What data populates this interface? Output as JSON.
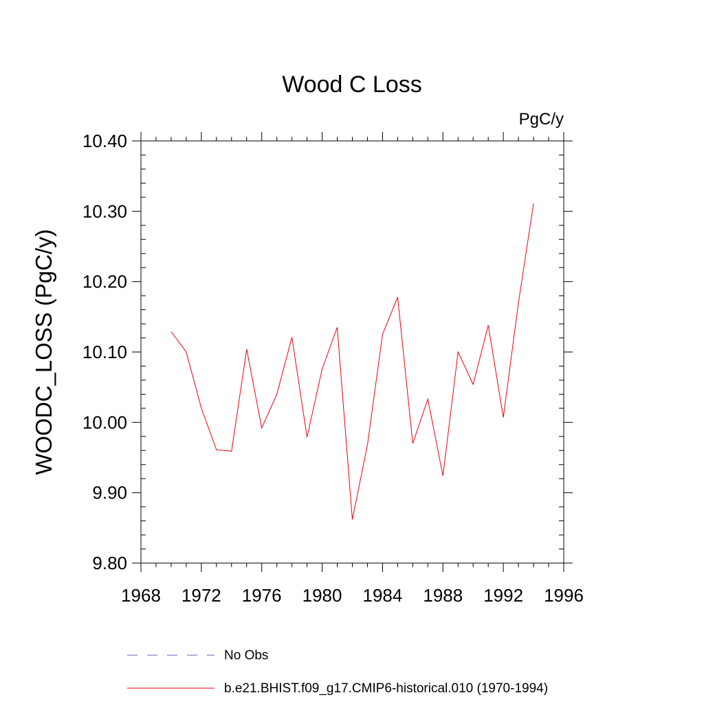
{
  "chart_data": {
    "type": "line",
    "title": "Wood C Loss",
    "units_label": "PgC/y",
    "ylabel": "WOODC_LOSS  (PgC/y)",
    "xlabel": "",
    "xlim": [
      1968,
      1996
    ],
    "ylim": [
      9.8,
      10.4
    ],
    "x_ticks": [
      "1968",
      "1972",
      "1976",
      "1980",
      "1984",
      "1988",
      "1992",
      "1996"
    ],
    "y_ticks": [
      "9.80",
      "9.90",
      "10.00",
      "10.10",
      "10.20",
      "10.30",
      "10.40"
    ],
    "grid": false,
    "legend_position": "bottom",
    "series": [
      {
        "name": "b.e21.BHIST.f09_g17.CMIP6-historical.010 (1970-1994)",
        "color": "#e8000b",
        "style": "solid",
        "x": [
          1970,
          1971,
          1972,
          1973,
          1974,
          1975,
          1976,
          1977,
          1978,
          1979,
          1980,
          1981,
          1982,
          1983,
          1984,
          1985,
          1986,
          1987,
          1988,
          1989,
          1990,
          1991,
          1992,
          1993,
          1994
        ],
        "y": [
          10.129,
          10.1,
          10.02,
          9.961,
          9.959,
          10.104,
          9.992,
          10.04,
          10.121,
          9.979,
          10.076,
          10.135,
          9.862,
          9.968,
          10.125,
          10.178,
          9.97,
          10.033,
          9.924,
          10.1,
          10.054,
          10.138,
          10.007,
          10.17,
          10.311
        ]
      }
    ],
    "legend": [
      {
        "label": "No Obs",
        "color": "#6b5fb5",
        "style": "dashed"
      },
      {
        "label": "b.e21.BHIST.f09_g17.CMIP6-historical.010 (1970-1994)",
        "color": "#e8000b",
        "style": "solid"
      }
    ]
  }
}
